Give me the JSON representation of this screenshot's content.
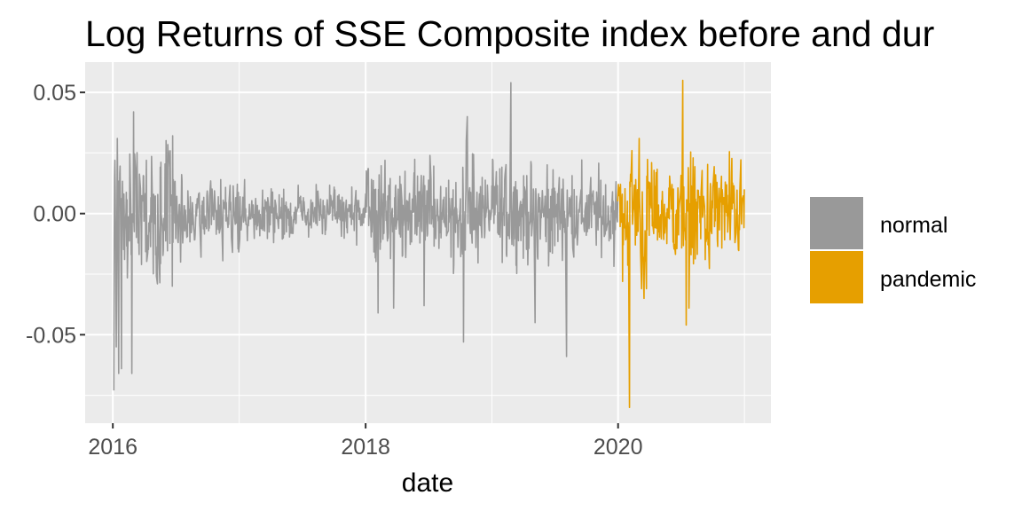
{
  "chart_data": {
    "type": "line",
    "title": "Log Returns of SSE Composite index before and dur",
    "xlabel": "date",
    "ylabel": "",
    "x_range": [
      "2015-10-13",
      "2021-03-18"
    ],
    "ylim": [
      -0.0865,
      0.0625
    ],
    "x_ticks": [
      {
        "label": "2016",
        "date": "2016-01-01"
      },
      {
        "label": "2018",
        "date": "2018-01-01"
      },
      {
        "label": "2020",
        "date": "2020-01-01"
      }
    ],
    "y_ticks": [
      {
        "label": "0.05",
        "value": 0.05
      },
      {
        "label": "0.00",
        "value": 0.0
      },
      {
        "label": "-0.05",
        "value": -0.05
      }
    ],
    "grid": true,
    "legend_position": "right",
    "legend": [
      {
        "label": "normal",
        "color": "#999999"
      },
      {
        "label": "pandemic",
        "color": "#E69F00"
      }
    ],
    "series": [
      {
        "name": "normal",
        "color": "#999999",
        "x": [
          "2016-01-04",
          "2016-01-07",
          "2016-01-11",
          "2016-01-14",
          "2016-01-18",
          "2016-01-26",
          "2016-02-25",
          "2016-03-01",
          "2016-03-07",
          "2016-03-14",
          "2016-04-07",
          "2016-05-09",
          "2016-06-13",
          "2016-07-15",
          "2016-09-12",
          "2016-12-12",
          "2017-01-16",
          "2017-04-10",
          "2017-05-08",
          "2017-08-11",
          "2017-12-06",
          "2018-02-06",
          "2018-02-09",
          "2018-02-26",
          "2018-03-23",
          "2018-06-19",
          "2018-07-06",
          "2018-09-05",
          "2018-10-11",
          "2018-10-19",
          "2018-10-22",
          "2019-01-04",
          "2019-02-25",
          "2019-05-06",
          "2019-05-13",
          "2019-08-05",
          "2019-12-16",
          "2019-12-31"
        ],
        "y": [
          -0.073,
          0.022,
          -0.055,
          0.031,
          -0.066,
          -0.064,
          -0.066,
          0.042,
          0.017,
          -0.012,
          0.022,
          -0.029,
          0.019,
          -0.02,
          -0.018,
          -0.016,
          0.014,
          -0.012,
          -0.01,
          0.012,
          -0.013,
          -0.041,
          0.016,
          0.022,
          -0.039,
          -0.038,
          0.024,
          -0.018,
          -0.053,
          0.03,
          0.04,
          0.022,
          0.054,
          -0.045,
          -0.018,
          -0.059,
          0.009,
          0.005
        ]
      },
      {
        "name": "pandemic",
        "color": "#E69F00",
        "x": [
          "2020-01-02",
          "2020-01-14",
          "2020-02-03",
          "2020-02-04",
          "2020-02-10",
          "2020-02-21",
          "2020-03-02",
          "2020-03-09",
          "2020-03-13",
          "2020-03-16",
          "2020-03-23",
          "2020-03-30",
          "2020-04-07",
          "2020-05-11",
          "2020-06-05",
          "2020-07-06",
          "2020-07-09",
          "2020-07-16",
          "2020-07-24",
          "2020-08-05",
          "2020-09-09",
          "2020-10-09",
          "2020-11-06",
          "2020-12-04",
          "2020-12-31"
        ],
        "y": [
          0.012,
          -0.028,
          -0.08,
          0.013,
          0.026,
          0.014,
          0.031,
          -0.031,
          -0.016,
          -0.035,
          -0.031,
          0.013,
          0.021,
          -0.008,
          0.012,
          0.055,
          0.011,
          -0.046,
          -0.039,
          0.023,
          -0.019,
          0.016,
          0.013,
          -0.012,
          0.01
        ]
      }
    ]
  }
}
